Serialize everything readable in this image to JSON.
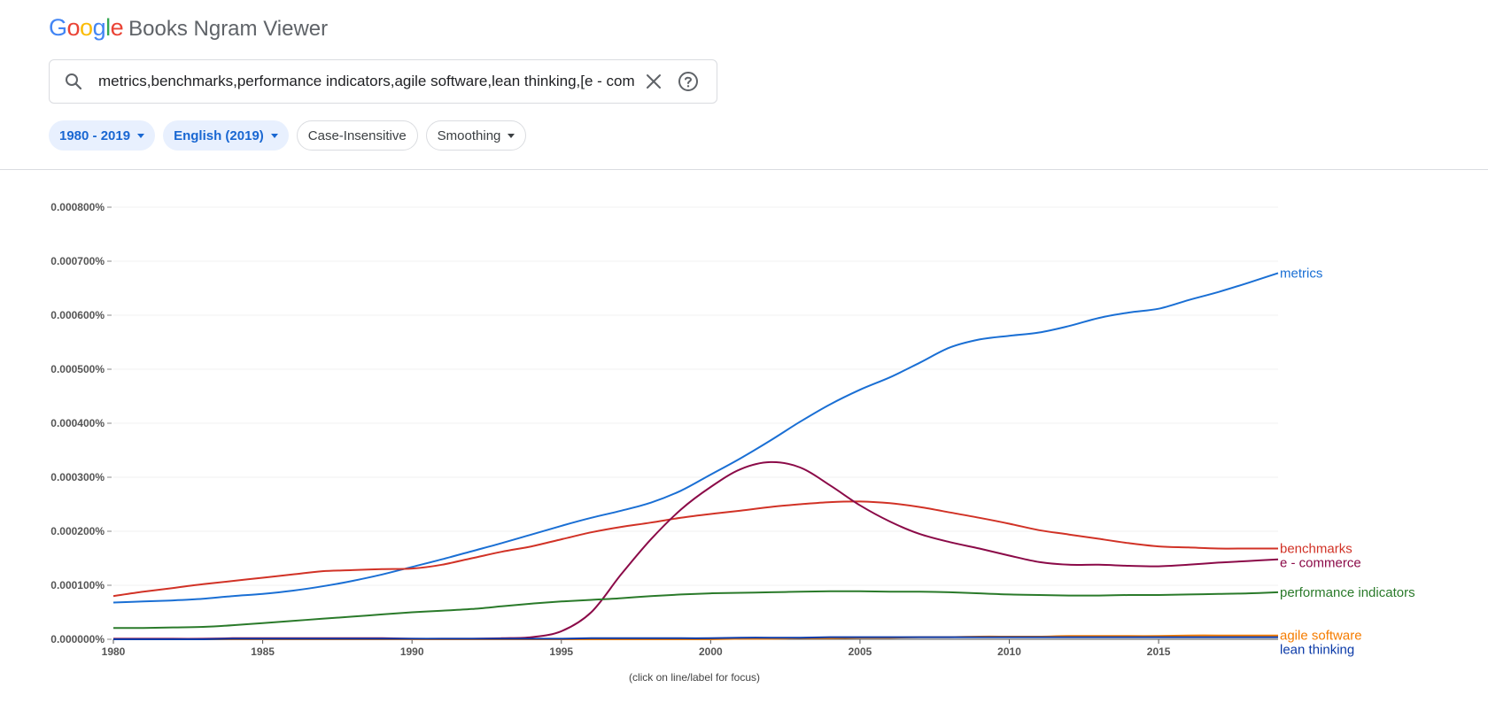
{
  "app": {
    "logo_letters": [
      {
        "ch": "G",
        "color": "#4285F4"
      },
      {
        "ch": "o",
        "color": "#EA4335"
      },
      {
        "ch": "o",
        "color": "#FBBC05"
      },
      {
        "ch": "g",
        "color": "#4285F4"
      },
      {
        "ch": "l",
        "color": "#34A853"
      },
      {
        "ch": "e",
        "color": "#EA4335"
      }
    ],
    "title": "Books Ngram Viewer"
  },
  "search": {
    "value": "metrics,benchmarks,performance indicators,agile software,lean thinking,[e - comr",
    "icon": "search-icon",
    "clear_icon": "close-icon",
    "help_icon": "help-icon"
  },
  "filters": {
    "year_range": "1980 - 2019",
    "corpus": "English (2019)",
    "case": "Case-Insensitive",
    "smoothing": "Smoothing"
  },
  "chart_data": {
    "type": "line",
    "x": [
      1980,
      1981,
      1982,
      1983,
      1984,
      1985,
      1986,
      1987,
      1988,
      1989,
      1990,
      1991,
      1992,
      1993,
      1994,
      1995,
      1996,
      1997,
      1998,
      1999,
      2000,
      2001,
      2002,
      2003,
      2004,
      2005,
      2006,
      2007,
      2008,
      2009,
      2010,
      2011,
      2012,
      2013,
      2014,
      2015,
      2016,
      2017,
      2018,
      2019
    ],
    "xlim": [
      1980,
      2019
    ],
    "xticks": [
      1980,
      1985,
      1990,
      1995,
      2000,
      2005,
      2010,
      2015
    ],
    "ylim": [
      0,
      0.0008
    ],
    "yticks": [
      {
        "value": 0,
        "label": "0.000000%"
      },
      {
        "value": 0.0001,
        "label": "0.000100%"
      },
      {
        "value": 0.0002,
        "label": "0.000200%"
      },
      {
        "value": 0.0003,
        "label": "0.000300%"
      },
      {
        "value": 0.0004,
        "label": "0.000400%"
      },
      {
        "value": 0.0005,
        "label": "0.000500%"
      },
      {
        "value": 0.0006,
        "label": "0.000600%"
      },
      {
        "value": 0.0007,
        "label": "0.000700%"
      },
      {
        "value": 0.0008,
        "label": "0.000800%"
      }
    ],
    "grid": true,
    "legend": "right-end labels",
    "note": "(click on line/label for focus)",
    "series": [
      {
        "name": "metrics",
        "color": "#1a6fd4",
        "values": [
          6.8e-05,
          7e-05,
          7.2e-05,
          7.5e-05,
          8e-05,
          8.4e-05,
          9e-05,
          9.8e-05,
          0.000108,
          0.00012,
          0.000134,
          0.000148,
          0.000163,
          0.000178,
          0.000194,
          0.00021,
          0.000225,
          0.000238,
          0.000253,
          0.000275,
          0.000305,
          0.000335,
          0.000368,
          0.000403,
          0.000435,
          0.000462,
          0.000485,
          0.000512,
          0.00054,
          0.000555,
          0.000562,
          0.000568,
          0.00058,
          0.000595,
          0.000605,
          0.000612,
          0.000628,
          0.000643,
          0.00066,
          0.000678
        ]
      },
      {
        "name": "benchmarks",
        "color": "#d13226",
        "values": [
          8e-05,
          8.8e-05,
          9.5e-05,
          0.000102,
          0.000108,
          0.000114,
          0.00012,
          0.000126,
          0.000128,
          0.00013,
          0.000131,
          0.000138,
          0.00015,
          0.000162,
          0.000172,
          0.000185,
          0.000198,
          0.000208,
          0.000216,
          0.000225,
          0.000232,
          0.000238,
          0.000245,
          0.00025,
          0.000254,
          0.000255,
          0.000252,
          0.000245,
          0.000235,
          0.000225,
          0.000214,
          0.000202,
          0.000194,
          0.000186,
          0.000178,
          0.000172,
          0.00017,
          0.000168,
          0.000168,
          0.000168
        ]
      },
      {
        "name": "e - commerce",
        "color": "#8b0a48",
        "values": [
          1e-06,
          1e-06,
          1e-06,
          1e-06,
          2e-06,
          2e-06,
          2e-06,
          2e-06,
          2e-06,
          2e-06,
          1e-06,
          1e-06,
          1e-06,
          2e-06,
          4e-06,
          1.5e-05,
          5e-05,
          0.00012,
          0.000185,
          0.00024,
          0.000282,
          0.000315,
          0.000328,
          0.000318,
          0.000285,
          0.000248,
          0.000218,
          0.000195,
          0.00018,
          0.000168,
          0.000155,
          0.000143,
          0.000138,
          0.000138,
          0.000136,
          0.000135,
          0.000138,
          0.000142,
          0.000145,
          0.000148
        ]
      },
      {
        "name": "performance indicators",
        "color": "#2a7a2a",
        "values": [
          2.1e-05,
          2.1e-05,
          2.2e-05,
          2.3e-05,
          2.6e-05,
          3e-05,
          3.4e-05,
          3.8e-05,
          4.2e-05,
          4.6e-05,
          5e-05,
          5.3e-05,
          5.6e-05,
          6.1e-05,
          6.6e-05,
          7e-05,
          7.3e-05,
          7.6e-05,
          8e-05,
          8.3e-05,
          8.5e-05,
          8.6e-05,
          8.7e-05,
          8.8e-05,
          8.9e-05,
          8.9e-05,
          8.8e-05,
          8.8e-05,
          8.7e-05,
          8.5e-05,
          8.3e-05,
          8.2e-05,
          8.1e-05,
          8.1e-05,
          8.2e-05,
          8.2e-05,
          8.3e-05,
          8.4e-05,
          8.5e-05,
          8.7e-05
        ]
      },
      {
        "name": "agile software",
        "color": "#f57c00",
        "values": [
          0,
          0,
          0,
          0,
          0,
          0,
          0,
          0,
          0,
          0,
          0,
          0,
          0,
          0,
          0,
          0,
          0,
          0,
          0,
          0,
          0,
          1e-06,
          1e-06,
          2e-06,
          2e-06,
          3e-06,
          3e-06,
          4e-06,
          4e-06,
          5e-06,
          5e-06,
          5e-06,
          6e-06,
          6e-06,
          6e-06,
          6e-06,
          7e-06,
          7e-06,
          7e-06,
          7e-06
        ]
      },
      {
        "name": "lean thinking",
        "color": "#0b3aa8",
        "values": [
          0,
          0,
          0,
          0,
          1e-06,
          1e-06,
          1e-06,
          1e-06,
          1e-06,
          1e-06,
          1e-06,
          1e-06,
          1e-06,
          1e-06,
          1e-06,
          1e-06,
          2e-06,
          2e-06,
          2e-06,
          2e-06,
          2e-06,
          3e-06,
          3e-06,
          3e-06,
          4e-06,
          4e-06,
          4e-06,
          4e-06,
          4e-06,
          4e-06,
          4e-06,
          4e-06,
          4e-06,
          4e-06,
          4e-06,
          4e-06,
          4e-06,
          4e-06,
          4e-06,
          4e-06
        ]
      }
    ]
  }
}
